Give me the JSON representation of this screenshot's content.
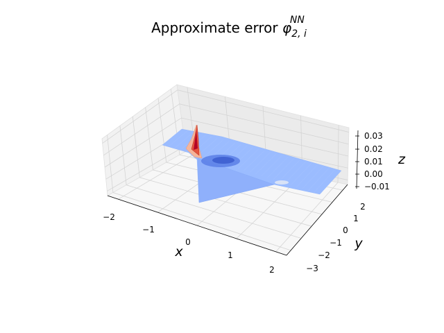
{
  "chart_data": {
    "type": "surface3d",
    "title": {
      "prefix": "Approximate error ",
      "symbol": "φ",
      "subscript": "2, i",
      "superscript": "NN"
    },
    "xlabel": "x",
    "ylabel": "y",
    "zlabel": "z",
    "x_ticks": [
      "−2",
      "−1",
      "0",
      "1",
      "2"
    ],
    "y_ticks": [
      "−3",
      "−2",
      "−1",
      "0",
      "1",
      "2"
    ],
    "z_ticks": [
      "−0.01",
      "0.00",
      "0.01",
      "0.02",
      "0.03"
    ],
    "xlim": [
      -2.2,
      2.2
    ],
    "ylim": [
      -3.4,
      2.6
    ],
    "zlim": [
      -0.014,
      0.034
    ],
    "colormap": "coolwarm",
    "grid": true,
    "surface": {
      "base_value": 0.0,
      "features": [
        {
          "kind": "spike",
          "x": -0.9,
          "y": 1.2,
          "z": 0.032
        },
        {
          "kind": "dip",
          "x": -0.2,
          "y": 0.4,
          "z": -0.006
        },
        {
          "kind": "plateau_drop",
          "x": -1.0,
          "y": -0.4,
          "z": -0.012
        }
      ]
    }
  }
}
